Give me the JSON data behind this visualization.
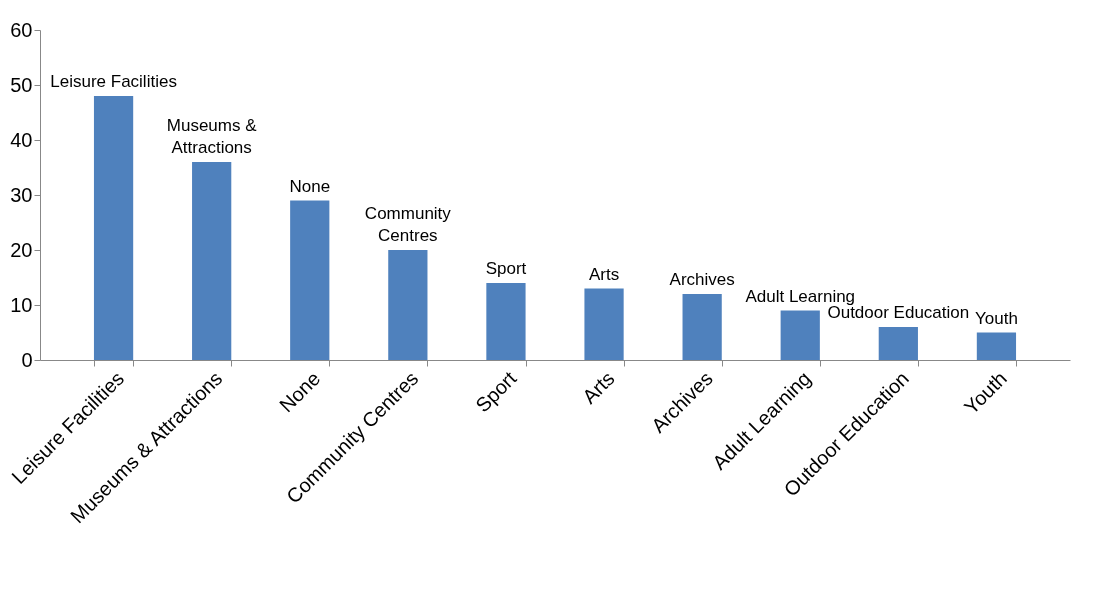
{
  "chart_data": {
    "type": "bar",
    "categories": [
      "Leisure Facilities",
      "Museums & Attractions",
      "None",
      "Community Centres",
      "Sport",
      "Arts",
      "Archives",
      "Adult Learning",
      "Outdoor Education",
      "Youth"
    ],
    "values": [
      48,
      36,
      29,
      20,
      14,
      13,
      12,
      9,
      6,
      5
    ],
    "value_labels": [
      "Leisure Facilities",
      "Museums &\nAttractions",
      "None",
      "Community\nCentres",
      "Sport",
      "Arts",
      "Archives",
      "Adult Learning",
      "Outdoor Education",
      "Youth"
    ],
    "color": "#4f81bd",
    "ylim": [
      0,
      60
    ],
    "yticks": [
      0,
      10,
      20,
      30,
      40,
      50,
      60
    ],
    "grid": false,
    "legend": false
  }
}
